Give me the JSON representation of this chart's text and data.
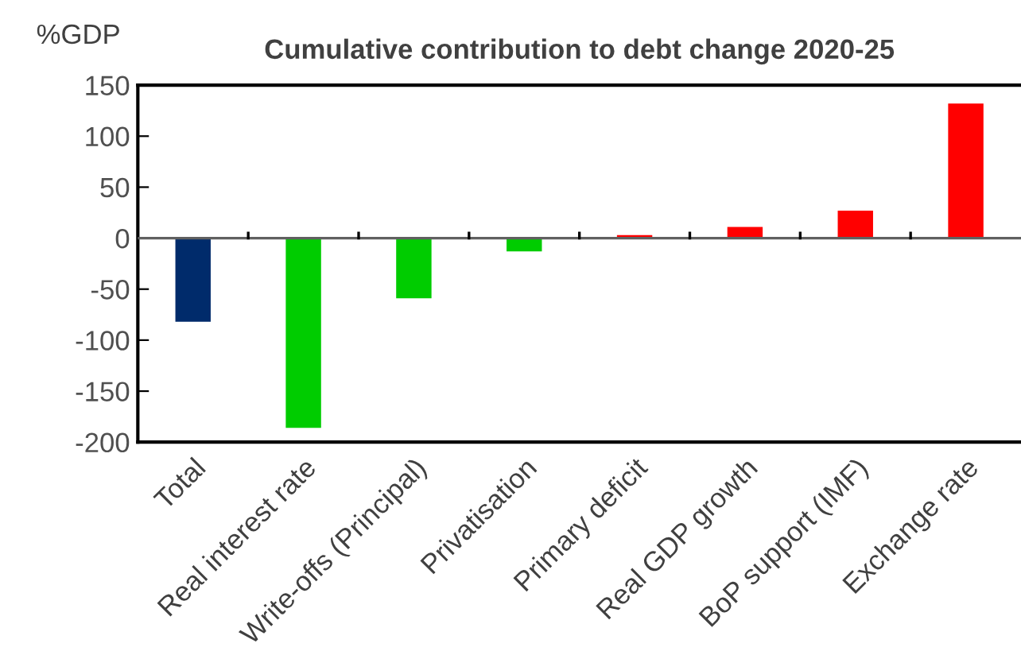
{
  "chart_data": {
    "type": "bar",
    "title": "Cumulative contribution to debt change 2020-25",
    "ylabel": "%GDP",
    "categories": [
      "Total",
      "Real interest rate",
      "Write-offs (Principal)",
      "Privatisation",
      "Primary deficit",
      "Real GDP growth",
      "BoP support (IMF)",
      "Exchange rate"
    ],
    "values": [
      -82,
      -186,
      -59,
      -13,
      3,
      11,
      27,
      132
    ],
    "colors": [
      "#002b6b",
      "#00cc00",
      "#00cc00",
      "#00cc00",
      "#ff0000",
      "#ff0000",
      "#ff0000",
      "#ff0000"
    ],
    "ylim": [
      -200,
      150
    ],
    "yticks": [
      -200,
      -150,
      -100,
      -50,
      0,
      50,
      100,
      150
    ],
    "legend": false
  }
}
